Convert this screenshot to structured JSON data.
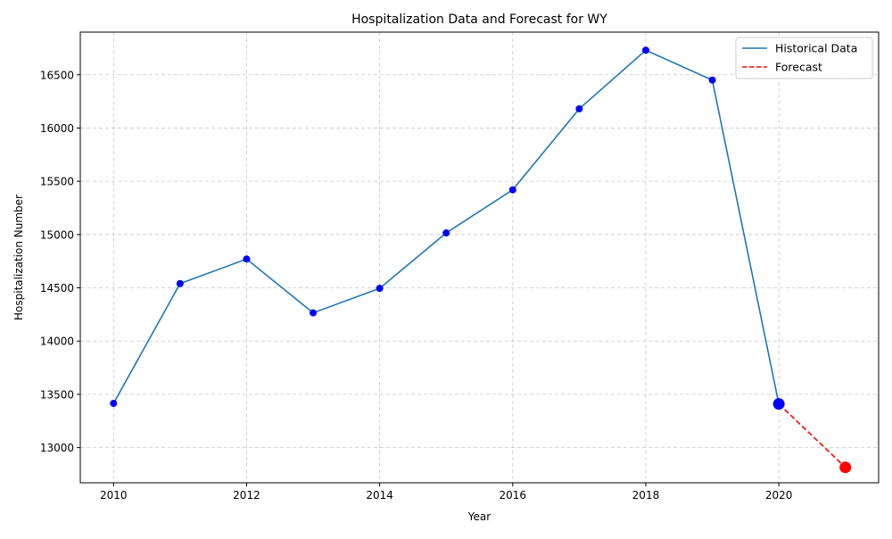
{
  "chart_data": {
    "type": "line",
    "title": "Hospitalization Data and Forecast for WY",
    "xlabel": "Year",
    "ylabel": "Hospitalization Number",
    "xlim": [
      2009.5,
      2021.5
    ],
    "ylim": [
      12670,
      16900
    ],
    "x_ticks": [
      2010,
      2012,
      2014,
      2016,
      2018,
      2020
    ],
    "y_ticks": [
      13000,
      13500,
      14000,
      14500,
      15000,
      15500,
      16000,
      16500
    ],
    "grid": true,
    "legend_position": "top-right",
    "series": [
      {
        "name": "Historical Data",
        "style": "solid",
        "color": "#1f77b4",
        "marker_color": "#0000ff",
        "x": [
          2010,
          2011,
          2012,
          2013,
          2014,
          2015,
          2016,
          2017,
          2018,
          2019,
          2020
        ],
        "y": [
          13415,
          14540,
          14770,
          14265,
          14495,
          15015,
          15420,
          16180,
          16730,
          16450,
          13410
        ]
      },
      {
        "name": "Forecast",
        "style": "dashed",
        "color": "#ff0000",
        "marker_color": "#ff0000",
        "x": [
          2020,
          2021
        ],
        "y": [
          13410,
          12815
        ]
      }
    ],
    "highlight_points": [
      {
        "x": 2020,
        "y": 13410,
        "color": "#0000ff"
      },
      {
        "x": 2021,
        "y": 12815,
        "color": "#ff0000"
      }
    ]
  }
}
